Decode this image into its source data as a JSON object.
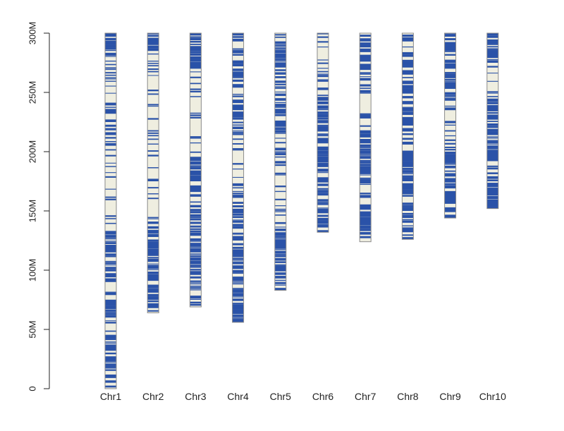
{
  "chart_data": {
    "type": "heatmap",
    "title": "",
    "xlabel": "",
    "ylabel": "",
    "ylim": [
      0,
      300
    ],
    "yunit": "Mb",
    "yticks": [
      {
        "value": 0,
        "label": "0"
      },
      {
        "value": 50,
        "label": "50M"
      },
      {
        "value": 100,
        "label": "100M"
      },
      {
        "value": 150,
        "label": "150M"
      },
      {
        "value": 200,
        "label": "200M"
      },
      {
        "value": 250,
        "label": "250M"
      },
      {
        "value": 300,
        "label": "300M"
      }
    ],
    "colors": {
      "marker": "#2a52a8",
      "background": "#efeee0",
      "outline": "#8a8a8a",
      "axis": "#222222"
    },
    "chromosomes": [
      {
        "name": "Chr1",
        "start": 0,
        "end": 300,
        "dense": [
          [
            0,
            45
          ],
          [
            55,
            80
          ],
          [
            90,
            135
          ],
          [
            205,
            240
          ],
          [
            280,
            300
          ]
        ]
      },
      {
        "name": "Chr2",
        "start": 64,
        "end": 300,
        "dense": [
          [
            64,
            140
          ],
          [
            285,
            300
          ]
        ]
      },
      {
        "name": "Chr3",
        "start": 69,
        "end": 300,
        "dense": [
          [
            69,
            195
          ],
          [
            270,
            300
          ]
        ]
      },
      {
        "name": "Chr4",
        "start": 56,
        "end": 300,
        "dense": [
          [
            56,
            165
          ],
          [
            215,
            300
          ]
        ]
      },
      {
        "name": "Chr5",
        "start": 83,
        "end": 300,
        "dense": [
          [
            83,
            140
          ],
          [
            215,
            300
          ]
        ]
      },
      {
        "name": "Chr6",
        "start": 132,
        "end": 300,
        "dense": [
          [
            132,
            245
          ]
        ]
      },
      {
        "name": "Chr7",
        "start": 124,
        "end": 300,
        "dense": [
          [
            124,
            220
          ],
          [
            255,
            300
          ]
        ]
      },
      {
        "name": "Chr8",
        "start": 126,
        "end": 300,
        "dense": [
          [
            126,
            300
          ]
        ]
      },
      {
        "name": "Chr9",
        "start": 144,
        "end": 300,
        "dense": [
          [
            144,
            200
          ],
          [
            235,
            300
          ]
        ]
      },
      {
        "name": "Chr10",
        "start": 152,
        "end": 300,
        "dense": [
          [
            152,
            245
          ],
          [
            275,
            300
          ]
        ]
      }
    ]
  }
}
